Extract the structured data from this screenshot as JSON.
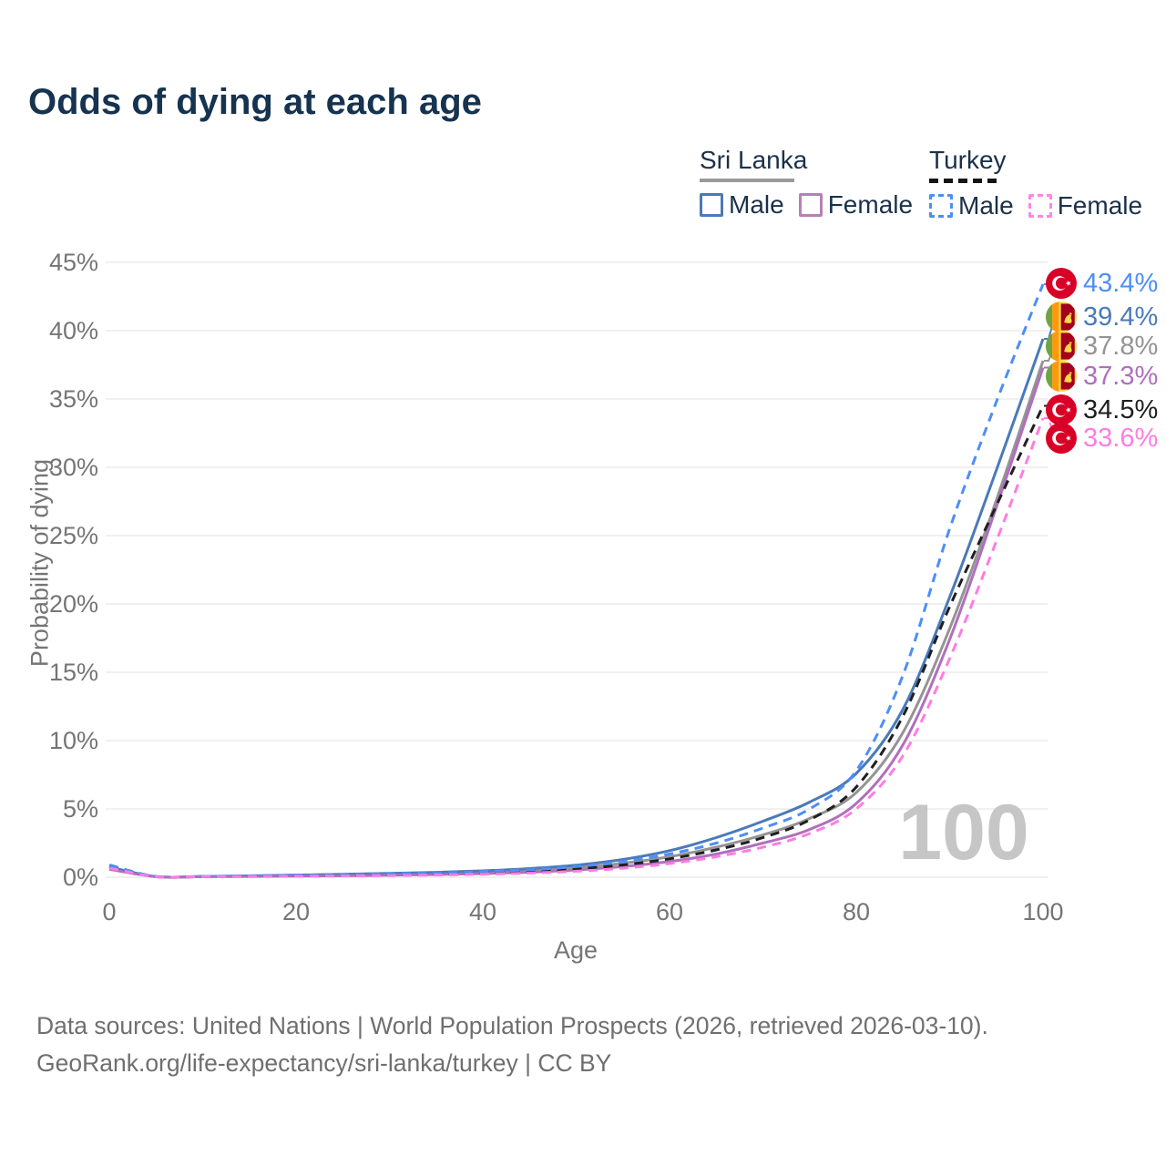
{
  "title": "Odds of dying at each age",
  "legend": {
    "groups": [
      {
        "name": "Sri Lanka",
        "line_style": "solid",
        "items": [
          {
            "label": "Male"
          },
          {
            "label": "Female"
          }
        ]
      },
      {
        "name": "Turkey",
        "line_style": "dashed",
        "items": [
          {
            "label": "Male"
          },
          {
            "label": "Female"
          }
        ]
      }
    ]
  },
  "colors": {
    "title_text": "#163350",
    "legend_text": "#1b3149",
    "axis_text": "#757575",
    "grid": "#ececec",
    "watermark": "#c6c6c6",
    "sri_lanka_male": "#4a7ab8",
    "sri_lanka_female": "#b06fbd",
    "sri_lanka_both": "#949494",
    "turkey_male": "#4d8ef7",
    "turkey_female": "#ff7ce0",
    "turkey_both": "#1f1f1f"
  },
  "watermark": "100",
  "chart_data": {
    "type": "line",
    "title": "Odds of dying at each age",
    "xlabel": "Age",
    "ylabel": "Probability of dying",
    "x_ticks": [
      0,
      20,
      40,
      60,
      80,
      100
    ],
    "y_ticks": [
      0,
      5,
      10,
      15,
      20,
      25,
      30,
      35,
      40,
      45
    ],
    "y_tick_suffix": "%",
    "xlim": [
      0,
      100
    ],
    "ylim_pct": [
      0,
      45
    ],
    "grid": "horizontal-only",
    "x": [
      0,
      5,
      10,
      15,
      20,
      25,
      30,
      35,
      40,
      45,
      50,
      55,
      60,
      65,
      70,
      75,
      80,
      85,
      90,
      95,
      100
    ],
    "series": [
      {
        "id": "sri-lanka-both",
        "country": "Sri Lanka",
        "sex": "Both sexes",
        "color": "#949494",
        "dashed": false,
        "end_label": "37.8%",
        "values_pct": [
          0.65,
          0.04,
          0.05,
          0.08,
          0.12,
          0.16,
          0.21,
          0.27,
          0.36,
          0.49,
          0.7,
          1.02,
          1.5,
          2.2,
          3.1,
          4.3,
          6.2,
          10.6,
          18.2,
          27.6,
          37.8
        ]
      },
      {
        "id": "sri-lanka-male",
        "country": "Sri Lanka",
        "sex": "Male",
        "color": "#4a7ab8",
        "dashed": false,
        "end_label": "39.4%",
        "values_pct": [
          0.75,
          0.05,
          0.06,
          0.1,
          0.16,
          0.22,
          0.28,
          0.36,
          0.47,
          0.63,
          0.88,
          1.3,
          1.95,
          2.9,
          4.1,
          5.5,
          7.6,
          12.3,
          20.5,
          29.8,
          39.4
        ]
      },
      {
        "id": "sri-lanka-female",
        "country": "Sri Lanka",
        "sex": "Female",
        "color": "#b06fbd",
        "dashed": false,
        "end_label": "37.3%",
        "values_pct": [
          0.58,
          0.04,
          0.04,
          0.06,
          0.08,
          0.11,
          0.15,
          0.2,
          0.27,
          0.37,
          0.53,
          0.78,
          1.15,
          1.7,
          2.5,
          3.5,
          5.4,
          9.7,
          17.4,
          27.1,
          37.3
        ]
      },
      {
        "id": "turkey-both",
        "country": "Turkey",
        "sex": "Both sexes",
        "color": "#1f1f1f",
        "dashed": true,
        "end_label": "34.5%",
        "values_pct": [
          0.8,
          0.04,
          0.05,
          0.08,
          0.11,
          0.15,
          0.19,
          0.24,
          0.32,
          0.43,
          0.6,
          0.9,
          1.35,
          2.0,
          2.9,
          4.2,
          6.6,
          11.8,
          19.8,
          27.2,
          34.5
        ]
      },
      {
        "id": "turkey-male",
        "country": "Turkey",
        "sex": "Male",
        "color": "#4d8ef7",
        "dashed": true,
        "end_label": "43.4%",
        "values_pct": [
          0.9,
          0.05,
          0.06,
          0.1,
          0.15,
          0.2,
          0.25,
          0.32,
          0.42,
          0.55,
          0.78,
          1.15,
          1.7,
          2.5,
          3.6,
          5.0,
          7.8,
          14.8,
          25.5,
          34.8,
          43.4
        ]
      },
      {
        "id": "turkey-female",
        "country": "Turkey",
        "sex": "Female",
        "color": "#ff7ce0",
        "dashed": true,
        "end_label": "33.6%",
        "values_pct": [
          0.68,
          0.03,
          0.04,
          0.05,
          0.07,
          0.09,
          0.12,
          0.16,
          0.22,
          0.31,
          0.44,
          0.66,
          1.0,
          1.5,
          2.2,
          3.2,
          5.0,
          8.9,
          16.0,
          24.6,
          33.6
        ]
      }
    ],
    "legend_position": "top-right"
  },
  "footer": {
    "line1": "Data sources: United Nations | World Population Prospects (2026, retrieved 2026-03-10).",
    "line2": "GeoRank.org/life-expectancy/sri-lanka/turkey | CC BY"
  }
}
